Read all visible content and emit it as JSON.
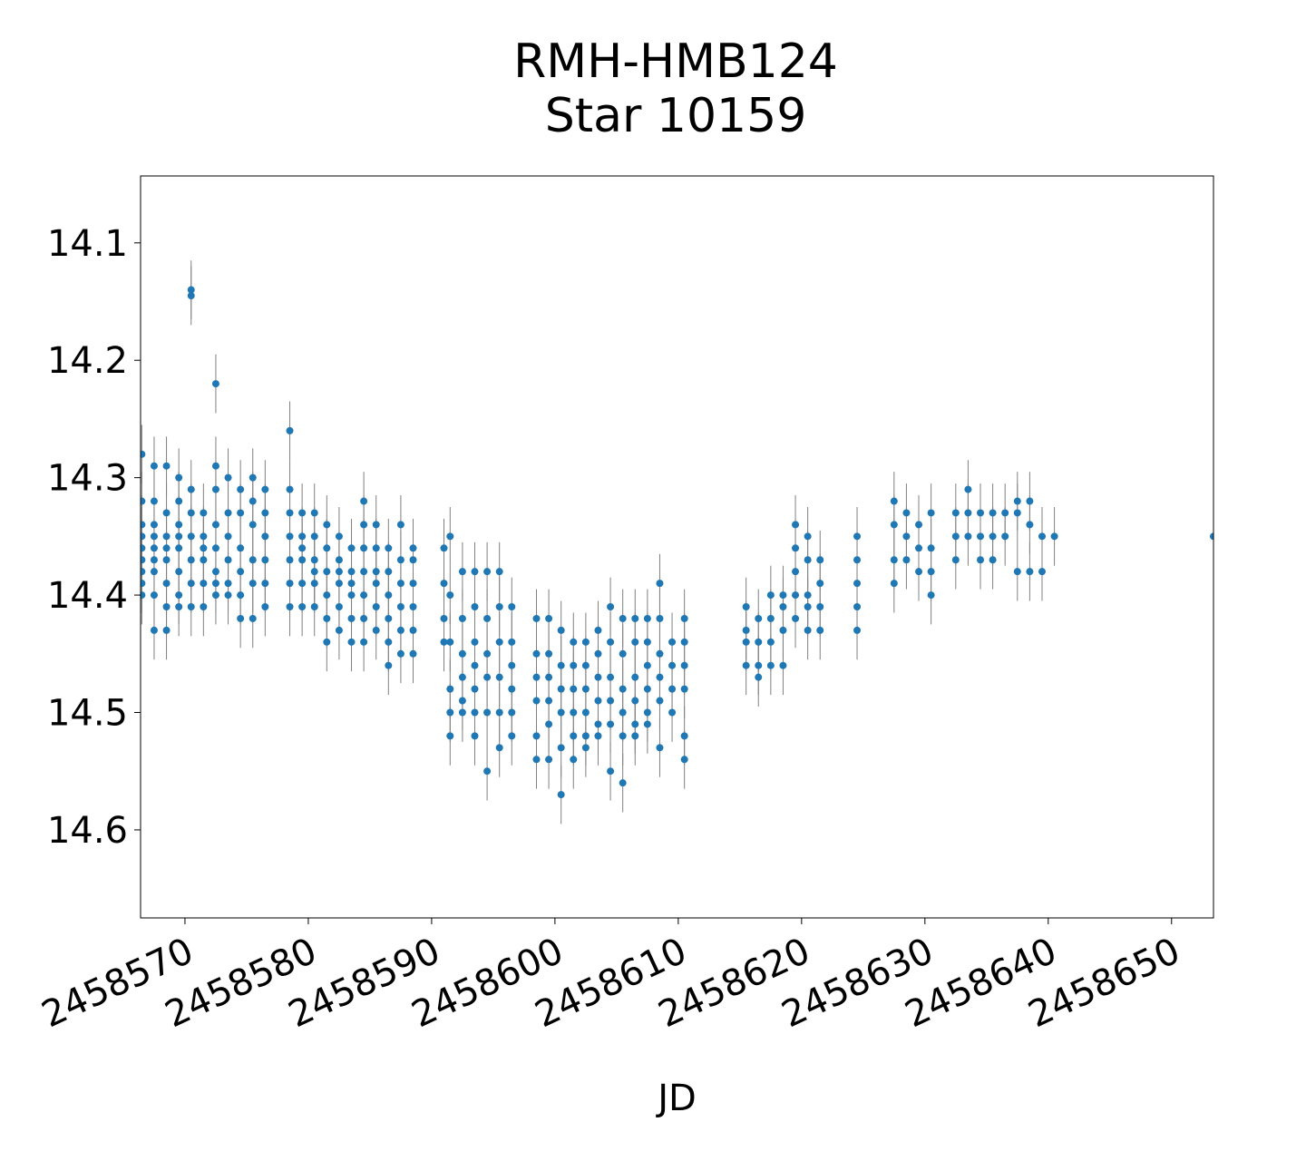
{
  "chart_data": {
    "type": "scatter",
    "title_lines": [
      "RMH-HMB124",
      "Star 10159"
    ],
    "xlabel": "JD",
    "ylabel": "",
    "xlim": [
      2458566.4,
      2458653.4
    ],
    "ylim": [
      14.675,
      14.043
    ],
    "y_inverted": true,
    "grid": false,
    "legend": "none",
    "x_ticks": [
      2458570,
      2458580,
      2458590,
      2458600,
      2458610,
      2458620,
      2458630,
      2458640,
      2458650
    ],
    "x_tick_labels": [
      "2458570",
      "2458580",
      "2458590",
      "2458600",
      "2458610",
      "2458620",
      "2458630",
      "2458640",
      "2458650"
    ],
    "y_ticks": [
      14.1,
      14.2,
      14.3,
      14.4,
      14.5,
      14.6
    ],
    "y_tick_labels": [
      "14.1",
      "14.2",
      "14.3",
      "14.4",
      "14.5",
      "14.6"
    ],
    "marker_color": "#1f77b4",
    "errorbar_color": "#808080",
    "error_magnitude": 0.025,
    "series": [
      {
        "nights": [
          {
            "x": 2458566.5,
            "y": [
              14.28,
              14.32,
              14.35,
              14.37,
              14.39,
              14.4,
              14.38,
              14.36,
              14.34
            ]
          },
          {
            "x": 2458567.5,
            "y": [
              14.32,
              14.34,
              14.36,
              14.38,
              14.4,
              14.43,
              14.29,
              14.35,
              14.37
            ]
          },
          {
            "x": 2458568.5,
            "y": [
              14.29,
              14.33,
              14.35,
              14.37,
              14.39,
              14.41,
              14.43,
              14.36
            ]
          },
          {
            "x": 2458569.5,
            "y": [
              14.3,
              14.32,
              14.34,
              14.36,
              14.38,
              14.4,
              14.41,
              14.35
            ]
          },
          {
            "x": 2458570.5,
            "y": [
              14.14,
              14.145,
              14.31,
              14.33,
              14.35,
              14.37,
              14.39,
              14.41
            ]
          },
          {
            "x": 2458571.5,
            "y": [
              14.33,
              14.35,
              14.37,
              14.39,
              14.41,
              14.36
            ]
          },
          {
            "x": 2458572.5,
            "y": [
              14.22,
              14.29,
              14.31,
              14.34,
              14.36,
              14.38,
              14.4,
              14.39
            ]
          },
          {
            "x": 2458573.5,
            "y": [
              14.3,
              14.33,
              14.35,
              14.37,
              14.39,
              14.4
            ]
          },
          {
            "x": 2458574.5,
            "y": [
              14.31,
              14.33,
              14.36,
              14.38,
              14.4,
              14.42
            ]
          },
          {
            "x": 2458575.5,
            "y": [
              14.3,
              14.32,
              14.34,
              14.37,
              14.39,
              14.42
            ]
          },
          {
            "x": 2458576.5,
            "y": [
              14.31,
              14.33,
              14.35,
              14.37,
              14.39,
              14.41
            ]
          },
          {
            "x": 2458578.5,
            "y": [
              14.26,
              14.31,
              14.33,
              14.35,
              14.37,
              14.39,
              14.41
            ]
          },
          {
            "x": 2458579.5,
            "y": [
              14.33,
              14.35,
              14.37,
              14.39,
              14.41,
              14.36
            ]
          },
          {
            "x": 2458580.5,
            "y": [
              14.33,
              14.35,
              14.37,
              14.39,
              14.41,
              14.38
            ]
          },
          {
            "x": 2458581.5,
            "y": [
              14.34,
              14.36,
              14.38,
              14.4,
              14.42,
              14.44
            ]
          },
          {
            "x": 2458582.5,
            "y": [
              14.35,
              14.37,
              14.39,
              14.41,
              14.43,
              14.38
            ]
          },
          {
            "x": 2458583.5,
            "y": [
              14.36,
              14.38,
              14.4,
              14.42,
              14.44,
              14.39
            ]
          },
          {
            "x": 2458584.5,
            "y": [
              14.32,
              14.34,
              14.36,
              14.38,
              14.4,
              14.42,
              14.44
            ]
          },
          {
            "x": 2458585.5,
            "y": [
              14.34,
              14.36,
              14.39,
              14.41,
              14.43,
              14.38
            ]
          },
          {
            "x": 2458586.5,
            "y": [
              14.36,
              14.38,
              14.4,
              14.42,
              14.44,
              14.46
            ]
          },
          {
            "x": 2458587.5,
            "y": [
              14.34,
              14.37,
              14.39,
              14.41,
              14.43,
              14.45
            ]
          },
          {
            "x": 2458588.5,
            "y": [
              14.36,
              14.37,
              14.39,
              14.41,
              14.43,
              14.45
            ]
          },
          {
            "x": 2458591.0,
            "y": [
              14.36,
              14.39,
              14.42,
              14.44
            ]
          },
          {
            "x": 2458591.5,
            "y": [
              14.35,
              14.4,
              14.44,
              14.48,
              14.5,
              14.52
            ]
          },
          {
            "x": 2458592.5,
            "y": [
              14.38,
              14.42,
              14.45,
              14.47,
              14.49,
              14.5
            ]
          },
          {
            "x": 2458593.5,
            "y": [
              14.38,
              14.41,
              14.44,
              14.46,
              14.48,
              14.5,
              14.52
            ]
          },
          {
            "x": 2458594.5,
            "y": [
              14.38,
              14.42,
              14.45,
              14.47,
              14.5,
              14.55
            ]
          },
          {
            "x": 2458595.5,
            "y": [
              14.38,
              14.41,
              14.44,
              14.47,
              14.5,
              14.53
            ]
          },
          {
            "x": 2458596.5,
            "y": [
              14.41,
              14.44,
              14.46,
              14.48,
              14.5,
              14.52
            ]
          },
          {
            "x": 2458598.5,
            "y": [
              14.42,
              14.45,
              14.47,
              14.49,
              14.52,
              14.54
            ]
          },
          {
            "x": 2458599.5,
            "y": [
              14.42,
              14.45,
              14.47,
              14.49,
              14.51,
              14.54
            ]
          },
          {
            "x": 2458600.5,
            "y": [
              14.43,
              14.46,
              14.48,
              14.5,
              14.53,
              14.57
            ]
          },
          {
            "x": 2458601.5,
            "y": [
              14.44,
              14.46,
              14.48,
              14.5,
              14.52,
              14.54
            ]
          },
          {
            "x": 2458602.5,
            "y": [
              14.44,
              14.46,
              14.48,
              14.5,
              14.52,
              14.53
            ]
          },
          {
            "x": 2458603.5,
            "y": [
              14.43,
              14.45,
              14.47,
              14.49,
              14.51,
              14.52
            ]
          },
          {
            "x": 2458604.5,
            "y": [
              14.41,
              14.44,
              14.47,
              14.49,
              14.51,
              14.55
            ]
          },
          {
            "x": 2458605.5,
            "y": [
              14.42,
              14.45,
              14.48,
              14.5,
              14.52,
              14.56
            ]
          },
          {
            "x": 2458606.5,
            "y": [
              14.42,
              14.44,
              14.47,
              14.49,
              14.51,
              14.52
            ]
          },
          {
            "x": 2458607.5,
            "y": [
              14.42,
              14.44,
              14.46,
              14.48,
              14.5,
              14.51
            ]
          },
          {
            "x": 2458608.5,
            "y": [
              14.39,
              14.42,
              14.45,
              14.47,
              14.49,
              14.53
            ]
          },
          {
            "x": 2458609.5,
            "y": [
              14.44,
              14.46,
              14.48,
              14.5
            ]
          },
          {
            "x": 2458610.5,
            "y": [
              14.42,
              14.44,
              14.46,
              14.48,
              14.52,
              14.54
            ]
          },
          {
            "x": 2458615.5,
            "y": [
              14.41,
              14.43,
              14.44,
              14.46
            ]
          },
          {
            "x": 2458616.5,
            "y": [
              14.42,
              14.44,
              14.46,
              14.47
            ]
          },
          {
            "x": 2458617.5,
            "y": [
              14.4,
              14.42,
              14.44,
              14.46
            ]
          },
          {
            "x": 2458618.5,
            "y": [
              14.4,
              14.41,
              14.43,
              14.46
            ]
          },
          {
            "x": 2458619.5,
            "y": [
              14.34,
              14.36,
              14.38,
              14.4,
              14.42
            ]
          },
          {
            "x": 2458620.5,
            "y": [
              14.35,
              14.37,
              14.4,
              14.41,
              14.43
            ]
          },
          {
            "x": 2458621.5,
            "y": [
              14.37,
              14.39,
              14.41,
              14.43
            ]
          },
          {
            "x": 2458624.5,
            "y": [
              14.35,
              14.37,
              14.39,
              14.41,
              14.43
            ]
          },
          {
            "x": 2458627.5,
            "y": [
              14.32,
              14.34,
              14.37,
              14.39
            ]
          },
          {
            "x": 2458628.5,
            "y": [
              14.33,
              14.35,
              14.37
            ]
          },
          {
            "x": 2458629.5,
            "y": [
              14.34,
              14.36,
              14.38
            ]
          },
          {
            "x": 2458630.5,
            "y": [
              14.33,
              14.36,
              14.38,
              14.4
            ]
          },
          {
            "x": 2458632.5,
            "y": [
              14.33,
              14.35,
              14.37
            ]
          },
          {
            "x": 2458633.5,
            "y": [
              14.31,
              14.33,
              14.35
            ]
          },
          {
            "x": 2458634.5,
            "y": [
              14.33,
              14.35,
              14.37
            ]
          },
          {
            "x": 2458635.5,
            "y": [
              14.33,
              14.35,
              14.37
            ]
          },
          {
            "x": 2458636.5,
            "y": [
              14.33,
              14.35
            ]
          },
          {
            "x": 2458637.5,
            "y": [
              14.32,
              14.33,
              14.38
            ]
          },
          {
            "x": 2458638.5,
            "y": [
              14.32,
              14.34,
              14.38
            ]
          },
          {
            "x": 2458639.5,
            "y": [
              14.35,
              14.38
            ]
          },
          {
            "x": 2458640.5,
            "y": [
              14.35
            ]
          },
          {
            "x": 2458653.4,
            "y": [
              14.35
            ]
          }
        ]
      }
    ]
  }
}
